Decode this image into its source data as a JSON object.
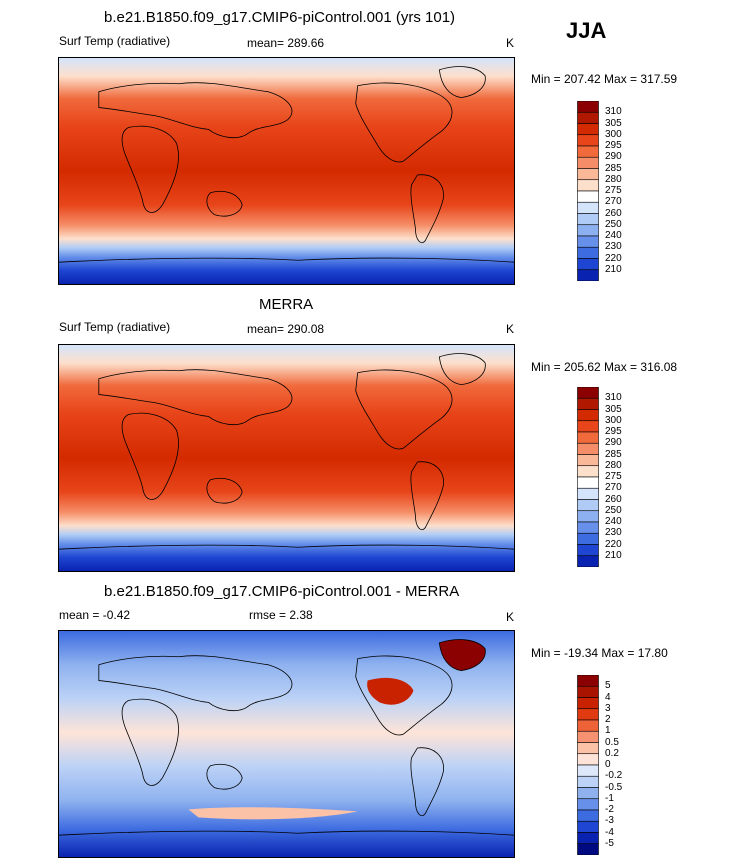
{
  "season": "JJA",
  "panels": [
    {
      "id": "model",
      "title": "b.e21.B1850.f09_g17.CMIP6-piControl.001 (yrs 101)",
      "left_label": "Surf Temp (radiative)",
      "center_label": "mean= 289.66",
      "units": "K",
      "minmax": "Min = 207.42 Max = 317.59",
      "levels": [
        "310",
        "305",
        "300",
        "295",
        "290",
        "285",
        "280",
        "275",
        "270",
        "260",
        "250",
        "240",
        "230",
        "220",
        "210"
      ],
      "colors": [
        "#8b0000",
        "#b01800",
        "#d42a00",
        "#e8451a",
        "#f06a3c",
        "#f58e68",
        "#f9b898",
        "#fde0cc",
        "#ffffff",
        "#d4e4fb",
        "#b0ccf6",
        "#8cb0f0",
        "#6690ea",
        "#3d6be0",
        "#1e46d2",
        "#0a22b0"
      ]
    },
    {
      "id": "obs",
      "title": "MERRA",
      "left_label": "Surf Temp (radiative)",
      "center_label": "mean= 290.08",
      "units": "K",
      "minmax": "Min = 205.62 Max = 316.08",
      "levels": [
        "310",
        "305",
        "300",
        "295",
        "290",
        "285",
        "280",
        "275",
        "270",
        "260",
        "250",
        "240",
        "230",
        "220",
        "210"
      ],
      "colors": [
        "#8b0000",
        "#b01800",
        "#d42a00",
        "#e8451a",
        "#f06a3c",
        "#f58e68",
        "#f9b898",
        "#fde0cc",
        "#ffffff",
        "#d4e4fb",
        "#b0ccf6",
        "#8cb0f0",
        "#6690ea",
        "#3d6be0",
        "#1e46d2",
        "#0a22b0"
      ]
    },
    {
      "id": "diff",
      "title": "b.e21.B1850.f09_g17.CMIP6-piControl.001 - MERRA",
      "left_label": "mean =  -0.42",
      "center_label": "rmse =   2.38",
      "units": "K",
      "minmax": "Min = -19.34 Max =  17.80",
      "levels": [
        "5",
        "4",
        "3",
        "2",
        "1",
        "0.5",
        "0.2",
        "0",
        "-0.2",
        "-0.5",
        "-1",
        "-2",
        "-3",
        "-4",
        "-5"
      ],
      "colors": [
        "#8b0000",
        "#a81400",
        "#c82200",
        "#e03a10",
        "#ee6238",
        "#f69272",
        "#fbc2a8",
        "#fee4d8",
        "#dde8fb",
        "#bcd2f6",
        "#8fb2ef",
        "#6690ea",
        "#3d6be0",
        "#1e46d2",
        "#0a22b0",
        "#000a80"
      ]
    }
  ],
  "chart_data": [
    {
      "type": "heatmap",
      "title": "b.e21.B1850.f09_g17.CMIP6-piControl.001 (yrs 101)",
      "variable": "Surf Temp (radiative)",
      "units": "K",
      "mean": 289.66,
      "min": 207.42,
      "max": 317.59,
      "season": "JJA",
      "colorbar_levels": [
        310,
        305,
        300,
        295,
        290,
        285,
        280,
        275,
        270,
        260,
        250,
        240,
        230,
        220,
        210
      ]
    },
    {
      "type": "heatmap",
      "title": "MERRA",
      "variable": "Surf Temp (radiative)",
      "units": "K",
      "mean": 290.08,
      "min": 205.62,
      "max": 316.08,
      "colorbar_levels": [
        310,
        305,
        300,
        295,
        290,
        285,
        280,
        275,
        270,
        260,
        250,
        240,
        230,
        220,
        210
      ]
    },
    {
      "type": "heatmap",
      "title": "b.e21.B1850.f09_g17.CMIP6-piControl.001 - MERRA",
      "units": "K",
      "mean": -0.42,
      "rmse": 2.38,
      "min": -19.34,
      "max": 17.8,
      "colorbar_levels": [
        5,
        4,
        3,
        2,
        1,
        0.5,
        0.2,
        0,
        -0.2,
        -0.5,
        -1,
        -2,
        -3,
        -4,
        -5
      ]
    }
  ]
}
